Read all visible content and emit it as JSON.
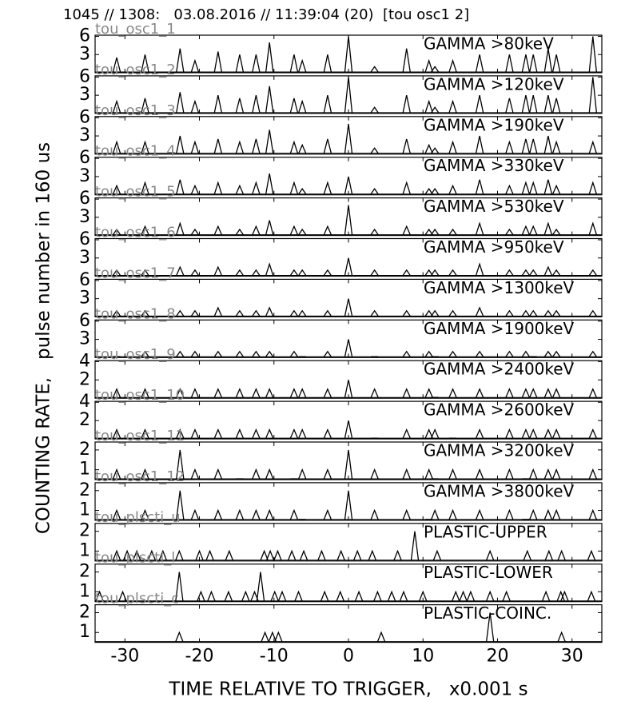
{
  "figure": {
    "title": "1045 // 1308:   03.08.2016 // 11:39:04 (20)  [tou osc1 2]",
    "ylabel": "COUNTING RATE,   pulse number in 160 us",
    "xlabel": "TIME RELATIVE TO TRIGGER,   x0.001 s"
  },
  "chart_data": [
    {
      "type": "line",
      "label": "tou_osc1_1",
      "xlim": [
        -34,
        34
      ],
      "xticks": [
        -30,
        -20,
        -10,
        0,
        10,
        20,
        30
      ],
      "ylim": [
        0,
        6.2
      ],
      "yticks": [
        3,
        6
      ],
      "x": [
        -31.1,
        -27.3,
        -22.6,
        -20.6,
        -17.5,
        -14.6,
        -12.4,
        -10.6,
        -7.3,
        -6.2,
        -2.8,
        0,
        3.5,
        7.8,
        10.8,
        11.6,
        14.0,
        17.6,
        21.6,
        23.8,
        24.8,
        26.8,
        27.9,
        32.8
      ],
      "series": [
        {
          "name": "GAMMA >80keV",
          "color": "#000000",
          "values": [
            2.5,
            3,
            4,
            2,
            3.5,
            3,
            3,
            5,
            3,
            2,
            3,
            6,
            1,
            4,
            2,
            1,
            2,
            3,
            3,
            3,
            3,
            4,
            3,
            6
          ]
        }
      ]
    },
    {
      "type": "line",
      "label": "tou_osc1_2",
      "xlim": [
        -34,
        34
      ],
      "xticks": [
        -30,
        -20,
        -10,
        0,
        10,
        20,
        30
      ],
      "ylim": [
        0,
        6.2
      ],
      "yticks": [
        3,
        6
      ],
      "x": [
        -31.1,
        -27.3,
        -22.6,
        -20.6,
        -17.5,
        -14.6,
        -12.4,
        -10.6,
        -7.3,
        -6.2,
        -2.8,
        0,
        3.5,
        7.8,
        10.8,
        11.6,
        14.0,
        17.6,
        21.6,
        23.8,
        24.8,
        26.8,
        27.9,
        32.8
      ],
      "series": [
        {
          "name": "GAMMA >120keV",
          "color": "#000000",
          "values": [
            2,
            2.5,
            3.5,
            2,
            3,
            2.5,
            3,
            4.5,
            2.5,
            2,
            3,
            6,
            1,
            3,
            2,
            1,
            2,
            3,
            2.5,
            3,
            3,
            3,
            2.5,
            6
          ]
        }
      ]
    },
    {
      "type": "line",
      "label": "tou_osc1_3",
      "xlim": [
        -34,
        34
      ],
      "xticks": [
        -30,
        -20,
        -10,
        0,
        10,
        20,
        30
      ],
      "ylim": [
        0,
        6.2
      ],
      "yticks": [
        3,
        6
      ],
      "x": [
        -31.1,
        -27.3,
        -22.6,
        -20.6,
        -17.5,
        -14.6,
        -12.4,
        -10.6,
        -7.3,
        -6.2,
        -2.8,
        0,
        3.5,
        7.8,
        10.8,
        11.6,
        14.0,
        17.6,
        21.6,
        23.8,
        24.8,
        26.8,
        27.9,
        32.8
      ],
      "series": [
        {
          "name": "GAMMA >190keV",
          "color": "#000000",
          "values": [
            2,
            2,
            3,
            2,
            2.5,
            2,
            2.5,
            4,
            2,
            1.5,
            2.5,
            5,
            1,
            2.5,
            1.5,
            1,
            2,
            3,
            2,
            2.5,
            2.5,
            3,
            2,
            2
          ]
        }
      ]
    },
    {
      "type": "line",
      "label": "tou_osc1_4",
      "xlim": [
        -34,
        34
      ],
      "xticks": [
        -30,
        -20,
        -10,
        0,
        10,
        20,
        30
      ],
      "ylim": [
        0,
        6.2
      ],
      "yticks": [
        3,
        6
      ],
      "x": [
        -31.1,
        -27.3,
        -22.6,
        -20.6,
        -17.5,
        -14.6,
        -12.4,
        -10.6,
        -7.3,
        -6.2,
        -2.8,
        0,
        3.5,
        7.8,
        10.8,
        11.6,
        14.0,
        17.6,
        21.6,
        23.8,
        24.8,
        26.8,
        27.9,
        32.8
      ],
      "series": [
        {
          "name": "GAMMA >330keV",
          "color": "#000000",
          "values": [
            1.5,
            2,
            2.5,
            1.5,
            2,
            1.5,
            2,
            3.5,
            2,
            1,
            2,
            3,
            1,
            2,
            1,
            1,
            1.5,
            2.5,
            1.5,
            2,
            2,
            2.5,
            1.5,
            2
          ]
        }
      ]
    },
    {
      "type": "line",
      "label": "tou_osc1_5",
      "xlim": [
        -34,
        34
      ],
      "xticks": [
        -30,
        -20,
        -10,
        0,
        10,
        20,
        30
      ],
      "ylim": [
        0,
        6.2
      ],
      "yticks": [
        3,
        6
      ],
      "x": [
        -31.1,
        -27.3,
        -22.6,
        -20.6,
        -17.5,
        -14.6,
        -12.4,
        -10.6,
        -7.3,
        -6.2,
        -2.8,
        0,
        3.5,
        7.8,
        10.8,
        11.6,
        14.0,
        17.6,
        21.6,
        23.8,
        24.8,
        26.8,
        27.9,
        32.8
      ],
      "series": [
        {
          "name": "GAMMA >530keV",
          "color": "#000000",
          "values": [
            1,
            1.5,
            2,
            1,
            1.5,
            1,
            1.5,
            2.5,
            1.5,
            1,
            1.5,
            5,
            1,
            1.5,
            1,
            1,
            1,
            2,
            1,
            1.5,
            1.5,
            2,
            1,
            2
          ]
        }
      ]
    },
    {
      "type": "line",
      "label": "tou_osc1_6",
      "xlim": [
        -34,
        34
      ],
      "xticks": [
        -30,
        -20,
        -10,
        0,
        10,
        20,
        30
      ],
      "ylim": [
        0,
        6.2
      ],
      "yticks": [
        3,
        6
      ],
      "x": [
        -31.1,
        -27.3,
        -22.6,
        -20.6,
        -17.5,
        -14.6,
        -12.4,
        -10.6,
        -7.3,
        -6.2,
        -2.8,
        0,
        3.5,
        7.8,
        10.8,
        11.6,
        14.0,
        17.6,
        21.6,
        23.8,
        24.8,
        26.8,
        27.9,
        32.8
      ],
      "series": [
        {
          "name": "GAMMA >950keV",
          "color": "#000000",
          "values": [
            1,
            1,
            1.5,
            1,
            1.5,
            1,
            1,
            2,
            1,
            1,
            1,
            3,
            1,
            1,
            1,
            1,
            1,
            2,
            1,
            1,
            1,
            1.5,
            1,
            1
          ]
        }
      ]
    },
    {
      "type": "line",
      "label": "tou_osc1_7",
      "xlim": [
        -34,
        34
      ],
      "xticks": [
        -30,
        -20,
        -10,
        0,
        10,
        20,
        30
      ],
      "ylim": [
        0,
        6.2
      ],
      "yticks": [
        3,
        6
      ],
      "x": [
        -31.1,
        -27.3,
        -22.6,
        -20.6,
        -17.5,
        -14.6,
        -12.4,
        -10.6,
        -7.3,
        -6.2,
        -2.8,
        0,
        3.5,
        7.8,
        10.8,
        11.6,
        14.0,
        17.6,
        21.6,
        23.8,
        24.8,
        26.8,
        27.9,
        32.8
      ],
      "series": [
        {
          "name": "GAMMA >1300keV",
          "color": "#000000",
          "values": [
            1,
            1,
            1,
            1,
            1.5,
            1,
            1,
            1.5,
            1,
            1,
            1,
            3,
            1,
            1,
            1,
            1,
            1,
            1.5,
            1,
            1,
            1,
            1,
            1,
            1
          ]
        }
      ]
    },
    {
      "type": "line",
      "label": "tou_osc1_8",
      "xlim": [
        -34,
        34
      ],
      "xticks": [
        -30,
        -20,
        -10,
        0,
        10,
        20,
        30
      ],
      "ylim": [
        0,
        6.2
      ],
      "yticks": [
        3,
        6
      ],
      "x": [
        -31.1,
        -27.3,
        -22.6,
        -20.6,
        -17.5,
        -14.6,
        -12.4,
        -10.6,
        -7.3,
        -6.2,
        -2.8,
        0,
        3.5,
        7.8,
        10.8,
        11.6,
        14.0,
        17.6,
        21.6,
        23.8,
        24.8,
        26.8,
        27.9,
        32.8
      ],
      "series": [
        {
          "name": "GAMMA >1900keV",
          "color": "#000000",
          "values": [
            0,
            1,
            1,
            1,
            1,
            1,
            1,
            1,
            1,
            0,
            1,
            3,
            0,
            1,
            1,
            0,
            1,
            1,
            1,
            1,
            0,
            1,
            1,
            1
          ]
        }
      ]
    },
    {
      "type": "line",
      "label": "tou_osc1_9",
      "xlim": [
        -34,
        34
      ],
      "xticks": [
        -30,
        -20,
        -10,
        0,
        10,
        20,
        30
      ],
      "ylim": [
        0,
        4.1
      ],
      "yticks": [
        2,
        4
      ],
      "x": [
        -31.1,
        -27.3,
        -22.6,
        -20.6,
        -17.5,
        -14.6,
        -12.4,
        -10.6,
        -7.3,
        -6.2,
        -2.8,
        0,
        3.5,
        7.8,
        10.8,
        11.6,
        14.0,
        17.6,
        21.6,
        23.8,
        24.8,
        26.8,
        27.9,
        32.8
      ],
      "series": [
        {
          "name": "GAMMA >2400keV",
          "color": "#000000",
          "values": [
            1,
            1,
            1,
            1,
            1,
            1,
            1,
            1,
            1,
            1,
            1,
            2,
            1,
            1,
            1,
            0,
            1,
            1,
            1,
            1,
            1,
            1,
            1,
            1
          ]
        }
      ]
    },
    {
      "type": "line",
      "label": "tou_osc1_10",
      "xlim": [
        -34,
        34
      ],
      "xticks": [
        -30,
        -20,
        -10,
        0,
        10,
        20,
        30
      ],
      "ylim": [
        0,
        4.1
      ],
      "yticks": [
        2,
        4
      ],
      "x": [
        -31.1,
        -27.3,
        -22.6,
        -20.6,
        -17.5,
        -14.6,
        -12.4,
        -10.6,
        -7.3,
        -6.2,
        -2.8,
        0,
        3.5,
        7.8,
        10.8,
        11.6,
        14.0,
        17.6,
        21.6,
        23.8,
        24.8,
        26.8,
        27.9,
        32.8
      ],
      "series": [
        {
          "name": "GAMMA >2600keV",
          "color": "#000000",
          "values": [
            1,
            1,
            1,
            1,
            1,
            1,
            1,
            1,
            1,
            1,
            1,
            2,
            0,
            1,
            1,
            1,
            0,
            1,
            1,
            1,
            1,
            1,
            1,
            1
          ]
        }
      ]
    },
    {
      "type": "line",
      "label": "tou_osc1_11",
      "xlim": [
        -34,
        34
      ],
      "xticks": [
        -30,
        -20,
        -10,
        0,
        10,
        20,
        30
      ],
      "ylim": [
        0.5,
        2.4
      ],
      "yticks": [
        1,
        2
      ],
      "x": [
        -31.1,
        -27.3,
        -22.6,
        -20.6,
        -17.5,
        -14.6,
        -12.4,
        -10.6,
        -7.3,
        -6.2,
        -2.8,
        0,
        3.5,
        7.8,
        10.8,
        11.6,
        14.0,
        17.6,
        21.6,
        23.8,
        24.8,
        26.8,
        27.9,
        32.8
      ],
      "series": [
        {
          "name": "GAMMA >3200keV",
          "color": "#000000",
          "values": [
            1,
            1,
            2,
            1,
            1,
            0,
            1,
            1,
            0,
            1,
            1,
            2,
            1,
            1,
            1,
            0,
            1,
            1,
            1,
            0,
            1,
            1,
            1,
            1
          ]
        }
      ]
    },
    {
      "type": "line",
      "label": "tou_osc1_12",
      "xlim": [
        -34,
        34
      ],
      "xticks": [
        -30,
        -20,
        -10,
        0,
        10,
        20,
        30
      ],
      "ylim": [
        0.5,
        2.4
      ],
      "yticks": [
        1,
        2
      ],
      "x": [
        -31.1,
        -27.3,
        -22.6,
        -20.6,
        -17.5,
        -14.6,
        -12.4,
        -10.6,
        -7.3,
        -6.2,
        -2.8,
        0,
        3.5,
        7.8,
        10.8,
        11.6,
        14.0,
        17.6,
        21.6,
        23.8,
        24.8,
        26.8,
        27.9,
        32.8
      ],
      "series": [
        {
          "name": "GAMMA >3800keV",
          "color": "#000000",
          "values": [
            1,
            1,
            2,
            1,
            1,
            1,
            1,
            1,
            1,
            0,
            1,
            2,
            1,
            1,
            0,
            1,
            1,
            1,
            1,
            0,
            1,
            1,
            1,
            1
          ]
        }
      ]
    },
    {
      "type": "line",
      "label": "tou_plscti_u",
      "xlim": [
        -34,
        34
      ],
      "xticks": [
        -30,
        -20,
        -10,
        0,
        10,
        20,
        30
      ],
      "ylim": [
        0.5,
        2.4
      ],
      "yticks": [
        1,
        2
      ],
      "x": [
        -31.1,
        -29.7,
        -28.4,
        -26.4,
        -24.9,
        -22.7,
        -20.0,
        -18.6,
        -16.0,
        -11.3,
        -10.5,
        -9.5,
        -7.6,
        -6.0,
        -3.6,
        -1.0,
        1.2,
        3.2,
        6.6,
        8.9,
        11.9,
        19.0,
        24.0,
        26.9,
        28.6,
        32.6
      ],
      "series": [
        {
          "name": "PLASTIC-UPPER",
          "color": "#000000",
          "values": [
            1,
            1,
            1,
            1,
            1,
            1,
            1,
            1,
            1,
            1,
            1,
            1,
            1,
            1,
            1,
            1,
            1,
            1,
            1,
            2,
            1,
            1,
            1,
            1,
            1,
            1
          ]
        }
      ]
    },
    {
      "type": "line",
      "label": "tou_plscti_l",
      "xlim": [
        -34,
        34
      ],
      "xticks": [
        -30,
        -20,
        -10,
        0,
        10,
        20,
        30
      ],
      "ylim": [
        0.5,
        2.4
      ],
      "yticks": [
        1,
        2
      ],
      "x": [
        -33.4,
        -30.3,
        -22.7,
        -19.8,
        -18.4,
        -16.1,
        -13.8,
        -12.6,
        -11.8,
        -9.9,
        -8.9,
        -6.7,
        -3.2,
        -1.1,
        1.4,
        3.9,
        5.8,
        7.4,
        10.0,
        14.4,
        15.4,
        16.4,
        19.0,
        21.2,
        26.5,
        28.5,
        29.0,
        32.6
      ],
      "series": [
        {
          "name": "PLASTIC-LOWER",
          "color": "#000000",
          "values": [
            1,
            1,
            2,
            1,
            1,
            1,
            1,
            1,
            2,
            1,
            1,
            1,
            1,
            1,
            1,
            1,
            1,
            1,
            1,
            1,
            1,
            1,
            1,
            1,
            1,
            1,
            1,
            1
          ]
        }
      ]
    },
    {
      "type": "line",
      "label": "tou_plscti_c",
      "xlim": [
        -34,
        34
      ],
      "xticks": [
        -30,
        -20,
        -10,
        0,
        10,
        20,
        30
      ],
      "ylim": [
        0.5,
        2.4
      ],
      "yticks": [
        1,
        2
      ],
      "x": [
        -22.7,
        -11.2,
        -10.2,
        -9.4,
        4.4,
        19.0,
        28.6
      ],
      "series": [
        {
          "name": "PLASTIC-COINC.",
          "color": "#000000",
          "values": [
            1,
            1,
            1,
            1,
            1,
            2,
            1
          ]
        }
      ]
    }
  ]
}
